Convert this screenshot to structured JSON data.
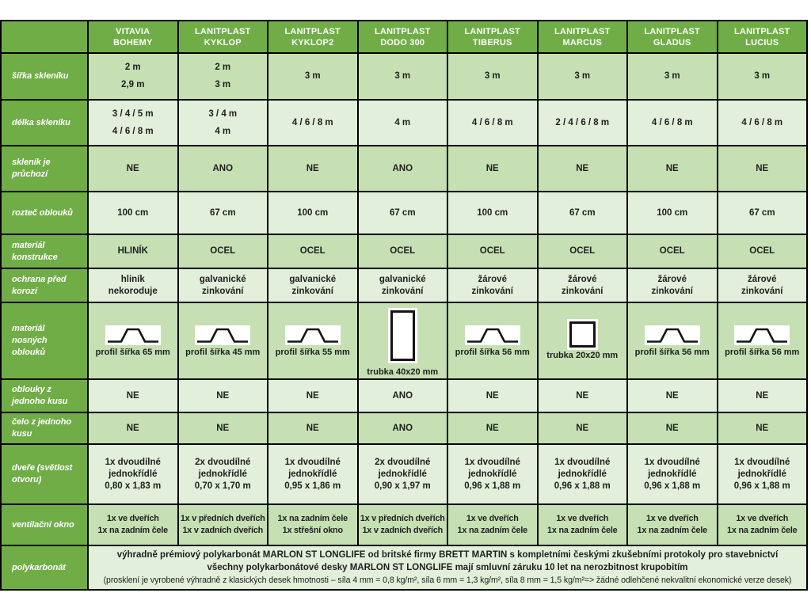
{
  "colors": {
    "header_green": "#70ad47",
    "row_light": "#c6e0b4",
    "row_lighter": "#e2efda",
    "border_black": "#000000",
    "cell_text": "#1f1f1f",
    "label_text": "#ffffff"
  },
  "header": {
    "corner_label": "",
    "columns": [
      [
        "VITAVIA",
        "BOHEMY"
      ],
      [
        "LANITPLAST",
        "KYKLOP"
      ],
      [
        "LANITPLAST",
        "KYKLOP2"
      ],
      [
        "LANITPLAST",
        "DODO 300"
      ],
      [
        "LANITPLAST",
        "TIBERUS"
      ],
      [
        "LANITPLAST",
        "MARCUS"
      ],
      [
        "LANITPLAST",
        "GLADUS"
      ],
      [
        "LANITPLAST",
        "LUCIUS"
      ]
    ]
  },
  "rows": [
    {
      "label": "šířka skleníku",
      "type": "text",
      "shade": "light",
      "spread": true,
      "cells": [
        [
          "2 m",
          "2,9 m"
        ],
        [
          "2 m",
          "3 m"
        ],
        [
          "3 m"
        ],
        [
          "3 m"
        ],
        [
          "3 m"
        ],
        [
          "3 m"
        ],
        [
          "3 m"
        ],
        [
          "3 m"
        ]
      ]
    },
    {
      "label": "délka skleníku",
      "type": "text",
      "shade": "lighter",
      "spread": true,
      "cells": [
        [
          "3 / 4 / 5 m",
          "4 / 6 / 8 m"
        ],
        [
          "3 / 4 m",
          "4 m"
        ],
        [
          "4 / 6 / 8 m"
        ],
        [
          "4 m"
        ],
        [
          "4 / 6 / 8 m"
        ],
        [
          "2 / 4 / 6 / 8 m"
        ],
        [
          "4 / 6 / 8 m"
        ],
        [
          "4 / 6 / 8 m"
        ]
      ]
    },
    {
      "label": "skleník je průchozí",
      "type": "text",
      "shade": "light",
      "cells": [
        [
          "NE"
        ],
        [
          "ANO"
        ],
        [
          "NE"
        ],
        [
          "ANO"
        ],
        [
          "NE"
        ],
        [
          "NE"
        ],
        [
          "NE"
        ],
        [
          "NE"
        ]
      ]
    },
    {
      "label": "rozteč oblouků",
      "type": "text",
      "shade": "lighter",
      "cells": [
        [
          "100 cm"
        ],
        [
          "67 cm"
        ],
        [
          "100 cm"
        ],
        [
          "67 cm"
        ],
        [
          "100 cm"
        ],
        [
          "67 cm"
        ],
        [
          "100 cm"
        ],
        [
          "67 cm"
        ]
      ]
    },
    {
      "label": "materiál konstrukce",
      "type": "text",
      "shade": "light",
      "cells": [
        [
          "HLINÍK"
        ],
        [
          "OCEL"
        ],
        [
          "OCEL"
        ],
        [
          "OCEL"
        ],
        [
          "OCEL"
        ],
        [
          "OCEL"
        ],
        [
          "OCEL"
        ],
        [
          "OCEL"
        ]
      ]
    },
    {
      "label": "ochrana před korozí",
      "type": "text",
      "shade": "lighter",
      "cells": [
        [
          "hliník",
          "nekoroduje"
        ],
        [
          "galvanické",
          "zinkování"
        ],
        [
          "galvanické",
          "zinkování"
        ],
        [
          "galvanické",
          "zinkování"
        ],
        [
          "žárové",
          "zinkování"
        ],
        [
          "žárové",
          "zinkování"
        ],
        [
          "žárové",
          "zinkování"
        ],
        [
          "žárové",
          "zinkování"
        ]
      ]
    },
    {
      "label": "materiál nosných oblouků",
      "type": "shape",
      "shade": "light",
      "cells": [
        {
          "shape": "hat",
          "caption": "profil šířka 65 mm"
        },
        {
          "shape": "hat",
          "caption": "profil šířka 45 mm"
        },
        {
          "shape": "hat",
          "caption": "profil šířka 55 mm"
        },
        {
          "shape": "tube-tall",
          "caption": "trubka 40x20 mm"
        },
        {
          "shape": "hat",
          "caption": "profil šířka 56 mm"
        },
        {
          "shape": "tube-square",
          "caption": "trubka 20x20 mm"
        },
        {
          "shape": "hat",
          "caption": "profil šířka 56 mm"
        },
        {
          "shape": "hat",
          "caption": "profil šířka 56 mm"
        }
      ]
    },
    {
      "label": "oblouky z jednoho kusu",
      "type": "text",
      "shade": "lighter",
      "cells": [
        [
          "NE"
        ],
        [
          "NE"
        ],
        [
          "NE"
        ],
        [
          "ANO"
        ],
        [
          "NE"
        ],
        [
          "NE"
        ],
        [
          "NE"
        ],
        [
          "NE"
        ]
      ]
    },
    {
      "label": "čelo z jednoho kusu",
      "type": "text",
      "shade": "light",
      "cells": [
        [
          "NE"
        ],
        [
          "NE"
        ],
        [
          "NE"
        ],
        [
          "ANO"
        ],
        [
          "NE"
        ],
        [
          "NE"
        ],
        [
          "NE"
        ],
        [
          "NE"
        ]
      ]
    },
    {
      "label": "dveře (světlost otvoru)",
      "type": "text",
      "shade": "lighter",
      "cells": [
        [
          "1x dvoudílné",
          "jednokřídlé",
          "0,80 x 1,83 m"
        ],
        [
          "2x dvoudílné",
          "jednokřídlé",
          "0,70 x 1,70 m"
        ],
        [
          "1x dvoudílné",
          "jednokřídlé",
          "0,95 x 1,86 m"
        ],
        [
          "2x dvoudílné",
          "jednokřídlé",
          "0,90 x 1,97 m"
        ],
        [
          "1x dvoudílné",
          "jednokřídlé",
          "0,96 x 1,88 m"
        ],
        [
          "1x dvoudílné",
          "jednokřídlé",
          "0,96 x 1,88 m"
        ],
        [
          "1x dvoudílné",
          "jednokřídlé",
          "0,96 x 1,88 m"
        ],
        [
          "1x dvoudílné",
          "jednokřídlé",
          "0,96 x 1,88 m"
        ]
      ]
    },
    {
      "label": "ventilační okno",
      "type": "text",
      "shade": "light",
      "small": true,
      "cells": [
        [
          "1x ve dveřích",
          "1x na zadním čele"
        ],
        [
          "1x v předních dveřích",
          "1x v zadních dveřích"
        ],
        [
          "1x na zadním čele",
          "1x střešní okno"
        ],
        [
          "1x v předních dveřích",
          "1x v zadních dveřích"
        ],
        [
          "1x ve dveřích",
          "1x na zadním čele"
        ],
        [
          "1x ve dveřích",
          "1x na zadním čele"
        ],
        [
          "1x ve dveřích",
          "1x na zadním čele"
        ],
        [
          "1x ve dveřích",
          "1x na zadním čele"
        ]
      ]
    },
    {
      "label": "polykarbonát",
      "type": "span",
      "shade": "lighter",
      "span_lines": [
        {
          "text": "výhradně prémiový polykarbonát MARLON ST LONGLIFE od britské firmy BRETT MARTIN s kompletními českými zkušebními protokoly pro stavebnictví",
          "bold": true
        },
        {
          "text": "všechny polykarbonátové desky MARLON ST LONGLIFE mají smluvní záruku 10 let na nerozbitnost krupobitím",
          "bold": true
        },
        {
          "text": "(prosklení je vyrobené výhradně z klasických desek hmotnosti – síla 4 mm = 0,8 kg/m², síla 6 mm = 1,3 kg/m², síla 8 mm = 1,5 kg/m²=> žádné odlehčené nekvalitní ekonomické verze desek)",
          "bold": false
        }
      ]
    }
  ]
}
